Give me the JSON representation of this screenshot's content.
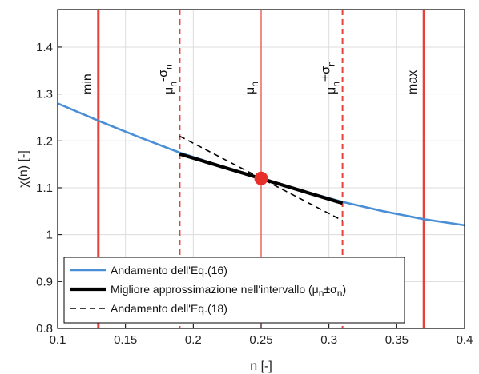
{
  "chart_data": {
    "type": "line",
    "xlabel": "n [-]",
    "ylabel": "χ(n) [-]",
    "xlim": [
      0.1,
      0.4
    ],
    "ylim": [
      0.8,
      1.48
    ],
    "xticks": [
      "0.1",
      "0.15",
      "0.2",
      "0.25",
      "0.3",
      "0.35",
      "0.4"
    ],
    "yticks": [
      "0.8",
      "0.9",
      "1",
      "1.1",
      "1.2",
      "1.3",
      "1.4"
    ],
    "grid": true,
    "legend_position": "bottom-left",
    "vertical_lines": [
      {
        "x": 0.13,
        "style": "solid",
        "label": "min"
      },
      {
        "x": 0.19,
        "style": "dashed",
        "label": "μ",
        "sub": "n",
        "extra": "-σ",
        "extra_sub": "n"
      },
      {
        "x": 0.25,
        "style": "thin",
        "label": "μ",
        "sub": "n",
        "extra": "",
        "extra_sub": ""
      },
      {
        "x": 0.31,
        "style": "dashed",
        "label": "μ",
        "sub": "n",
        "extra": "+σ",
        "extra_sub": "n"
      },
      {
        "x": 0.37,
        "style": "solid",
        "label": "max"
      }
    ],
    "series": [
      {
        "name": "Andamento dell'Eq.(16)",
        "style": "blue",
        "x": [
          0.1,
          0.13,
          0.16,
          0.19,
          0.22,
          0.25,
          0.28,
          0.31,
          0.34,
          0.37,
          0.4
        ],
        "y": [
          1.28,
          1.243,
          1.208,
          1.175,
          1.147,
          1.12,
          1.094,
          1.07,
          1.05,
          1.033,
          1.02
        ]
      },
      {
        "name": "Migliore approssimazione nell'intervallo (μ",
        "name_sub": "n",
        "name_tail": "±σ",
        "name_tail_sub": "n",
        "name_end": ")",
        "style": "black-thick",
        "x": [
          0.19,
          0.31
        ],
        "y": [
          1.172,
          1.067
        ]
      },
      {
        "name": "Andamento dell'Eq.(18)",
        "style": "black-dashed",
        "x": [
          0.19,
          0.31
        ],
        "y": [
          1.21,
          1.03
        ]
      }
    ],
    "marker": {
      "x": 0.25,
      "y": 1.12,
      "color": "#e8302a"
    }
  },
  "colors": {
    "blue": "#4a8fd6",
    "red": "#e8403a",
    "black": "#000000",
    "grid": "#dcdcdc"
  }
}
